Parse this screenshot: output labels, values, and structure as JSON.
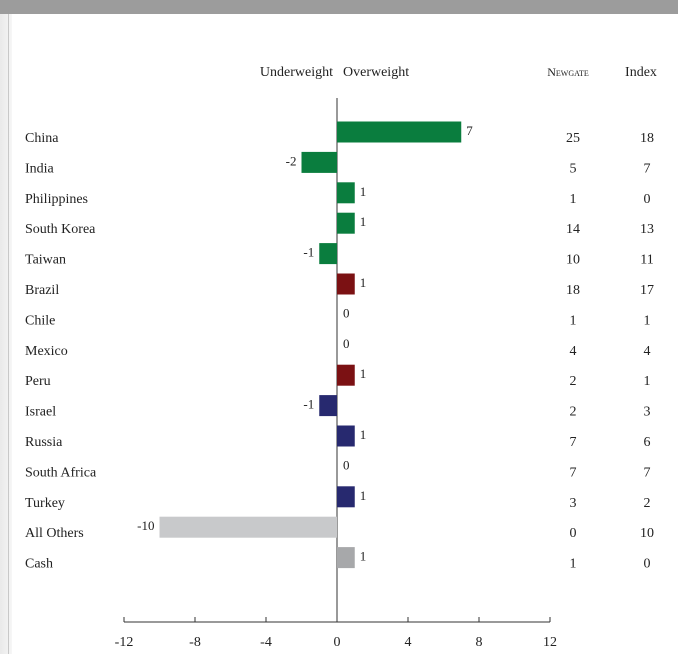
{
  "header": {
    "underweight": "Underweight",
    "overweight": "Overweight",
    "col_portfolio": "Newgate",
    "col_index": "Index"
  },
  "colors": {
    "asia": "#0a7d3e",
    "latam": "#7b1113",
    "emea": "#27296f",
    "others": "#c8c9cb",
    "cash": "#a7a8aa"
  },
  "chart_data": {
    "type": "bar",
    "orientation": "horizontal",
    "title": "",
    "xlabel": "",
    "ylabel": "",
    "xlim": [
      -12,
      12
    ],
    "xticks": [
      -12,
      -8,
      -4,
      0,
      4,
      8,
      12
    ],
    "categories": [
      "China",
      "India",
      "Philippines",
      "South Korea",
      "Taiwan",
      "Brazil",
      "Chile",
      "Mexico",
      "Peru",
      "Israel",
      "Russia",
      "South Africa",
      "Turkey",
      "All Others",
      "Cash"
    ],
    "values": [
      7,
      -2,
      1,
      1,
      -1,
      1,
      0,
      0,
      1,
      -1,
      1,
      0,
      1,
      -10,
      1
    ],
    "bar_colors": [
      "asia",
      "asia",
      "asia",
      "asia",
      "asia",
      "latam",
      "latam",
      "latam",
      "latam",
      "emea",
      "emea",
      "emea",
      "emea",
      "others",
      "cash"
    ],
    "table": {
      "Newgate": [
        25,
        5,
        1,
        14,
        10,
        18,
        1,
        4,
        2,
        2,
        7,
        7,
        3,
        0,
        1
      ],
      "Index": [
        18,
        7,
        0,
        13,
        11,
        17,
        1,
        4,
        1,
        3,
        6,
        7,
        2,
        10,
        0
      ]
    }
  }
}
